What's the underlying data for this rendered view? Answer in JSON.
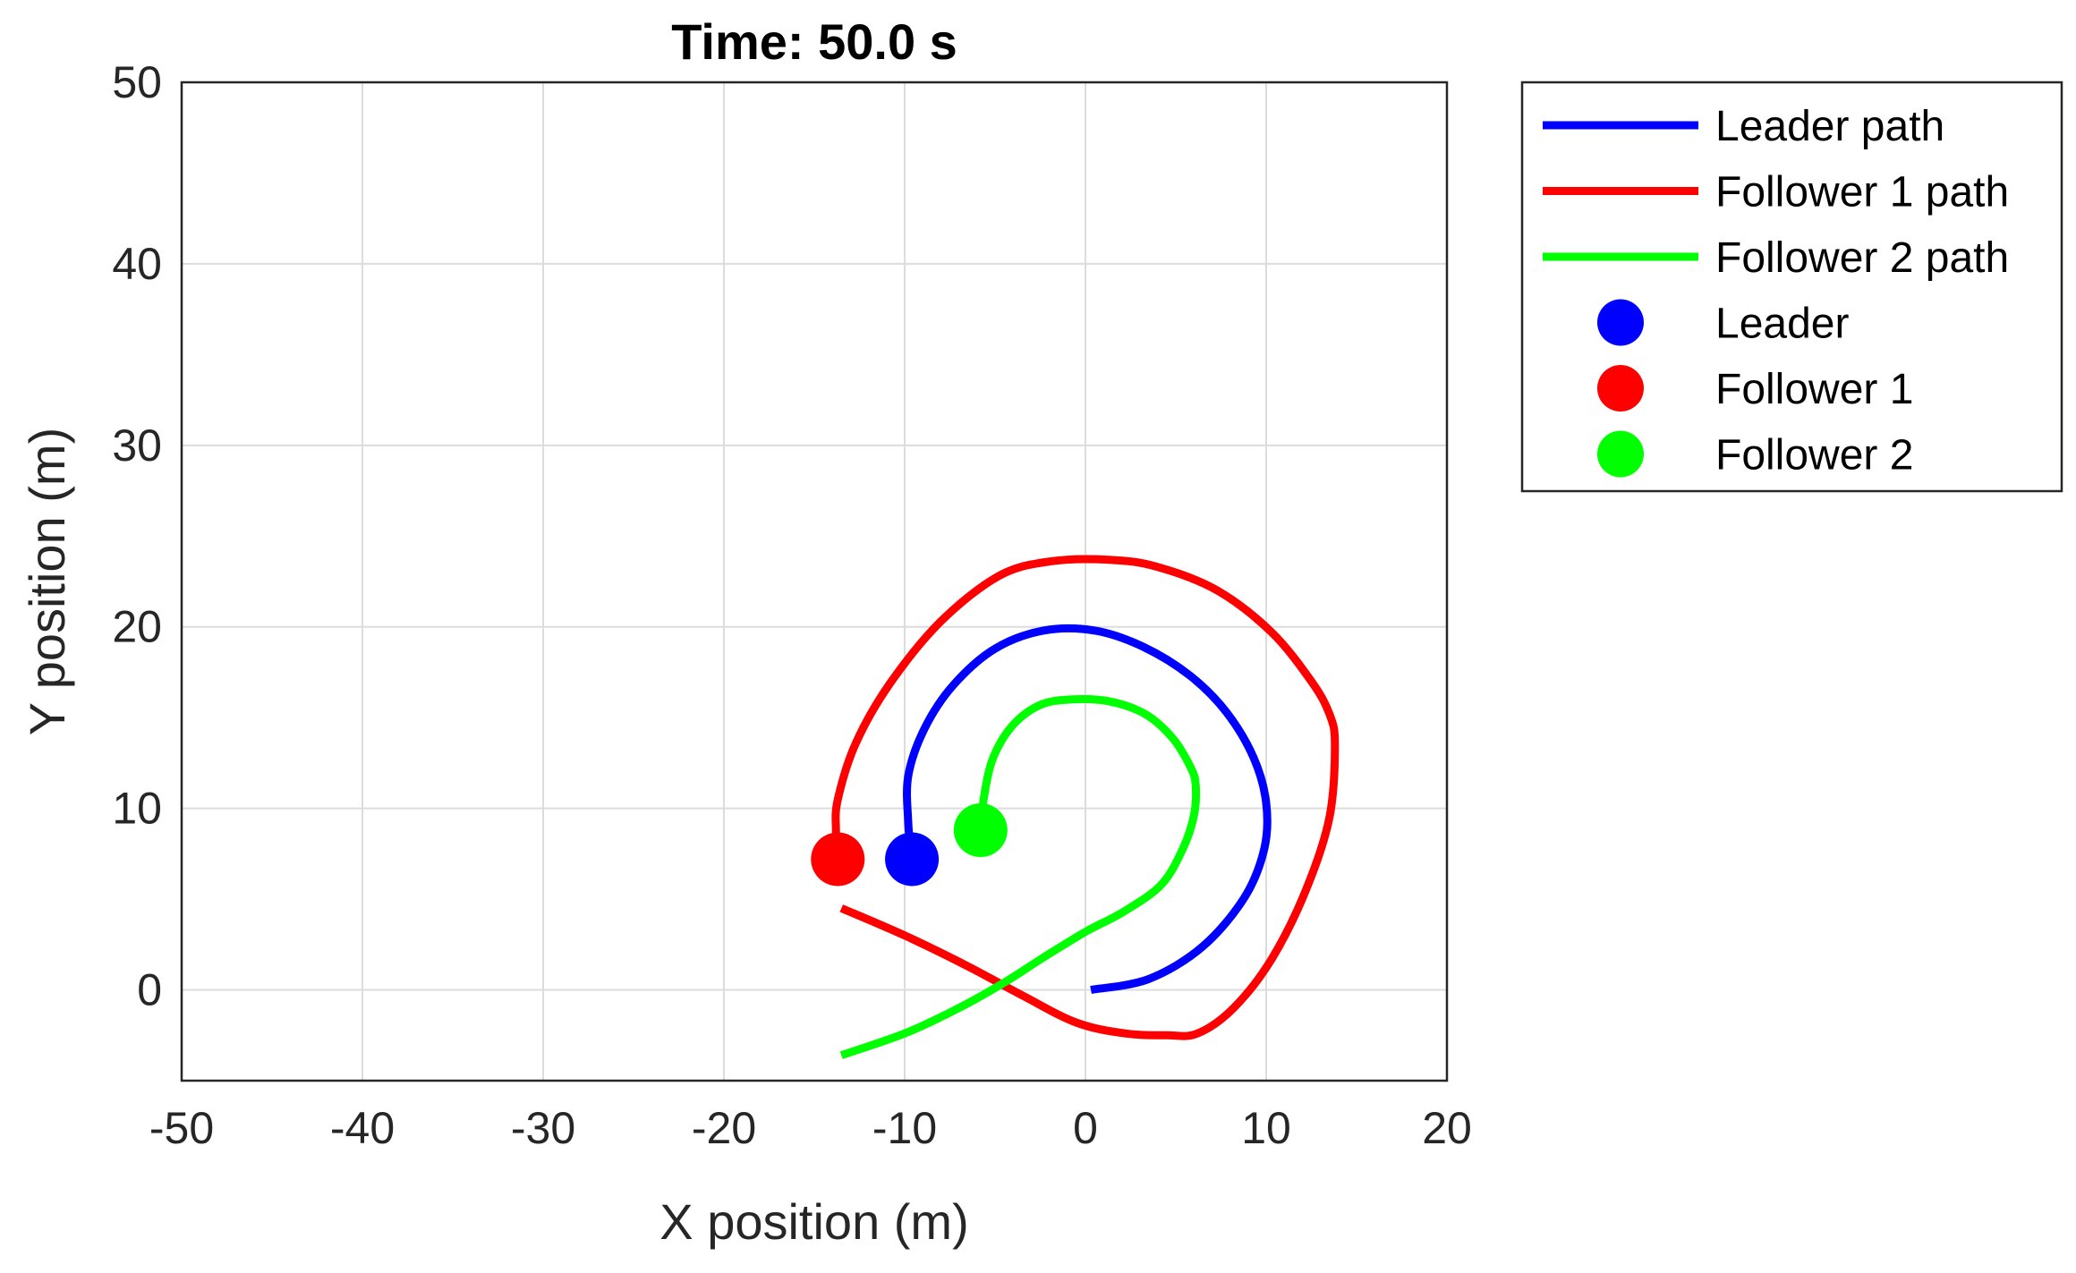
{
  "chart_data": {
    "type": "line",
    "title": "Time: 50.0 s",
    "xlabel": "X position (m)",
    "ylabel": "Y position (m)",
    "xlim": [
      -50,
      20
    ],
    "ylim": [
      -5,
      50
    ],
    "xticks": [
      -50,
      -40,
      -30,
      -20,
      -10,
      0,
      10,
      20
    ],
    "yticks": [
      0,
      10,
      20,
      30,
      40,
      50
    ],
    "xtick_labels": [
      "-50",
      "-40",
      "-30",
      "-20",
      "-10",
      "0",
      "10",
      "20"
    ],
    "ytick_labels": [
      "0",
      "10",
      "20",
      "30",
      "40",
      "50"
    ],
    "grid": true,
    "legend_position": "outside-top-right",
    "series": [
      {
        "name": "Leader path",
        "color": "#0000ff",
        "x": [
          0.3,
          3.5,
          6.5,
          8.8,
          9.9,
          10.0,
          9.3,
          7.8,
          5.8,
          3.2,
          0.5,
          -2.3,
          -5.0,
          -7.3,
          -8.9,
          -9.8,
          -9.8,
          -9.6
        ],
        "y": [
          0.0,
          0.6,
          2.4,
          5.1,
          7.8,
          10.3,
          12.8,
          15.3,
          17.3,
          18.9,
          19.8,
          19.8,
          18.8,
          16.8,
          14.4,
          11.8,
          9.2,
          7.2
        ]
      },
      {
        "name": "Follower 1 path",
        "color": "#ff0000",
        "x": [
          -13.5,
          -10.0,
          -6.5,
          -3.5,
          -0.5,
          2.2,
          4.5,
          6.2,
          8.2,
          10.3,
          12.2,
          13.5,
          13.8,
          13.5,
          12.5,
          10.3,
          7.3,
          4.0,
          1.3,
          -2.0,
          -4.8,
          -8.0,
          -10.8,
          -12.7,
          -13.7,
          -13.8,
          -13.7
        ],
        "y": [
          4.5,
          3.0,
          1.3,
          -0.3,
          -1.8,
          -2.4,
          -2.5,
          -2.4,
          -1.0,
          1.7,
          5.5,
          9.5,
          13.5,
          15.2,
          17.0,
          19.7,
          22.0,
          23.3,
          23.7,
          23.6,
          22.8,
          20.3,
          16.9,
          13.6,
          10.5,
          8.8,
          7.2
        ]
      },
      {
        "name": "Follower 2 path",
        "color": "#00ff00",
        "x": [
          -13.5,
          -10.0,
          -7.0,
          -4.5,
          -2.3,
          0.0,
          2.1,
          4.2,
          5.4,
          6.0,
          6.1,
          5.8,
          4.8,
          3.3,
          1.3,
          -0.8,
          -2.5,
          -4.0,
          -5.1,
          -5.6,
          -5.8
        ],
        "y": [
          -3.6,
          -2.4,
          -1.0,
          0.4,
          1.8,
          3.2,
          4.3,
          5.8,
          7.8,
          9.6,
          11.3,
          12.3,
          13.9,
          15.2,
          15.9,
          16.0,
          15.7,
          14.6,
          12.8,
          10.7,
          8.8
        ]
      }
    ],
    "markers": [
      {
        "name": "Leader",
        "color": "#0000ff",
        "x": -9.6,
        "y": 7.2
      },
      {
        "name": "Follower 1",
        "color": "#ff0000",
        "x": -13.7,
        "y": 7.2
      },
      {
        "name": "Follower 2",
        "color": "#00ff00",
        "x": -5.8,
        "y": 8.8
      }
    ],
    "legend": [
      {
        "label": "Leader path",
        "kind": "line",
        "color": "#0000ff"
      },
      {
        "label": "Follower 1 path",
        "kind": "line",
        "color": "#ff0000"
      },
      {
        "label": "Follower 2 path",
        "kind": "line",
        "color": "#00ff00"
      },
      {
        "label": "Leader",
        "kind": "marker",
        "color": "#0000ff"
      },
      {
        "label": "Follower 1",
        "kind": "marker",
        "color": "#ff0000"
      },
      {
        "label": "Follower 2",
        "kind": "marker",
        "color": "#00ff00"
      }
    ]
  }
}
